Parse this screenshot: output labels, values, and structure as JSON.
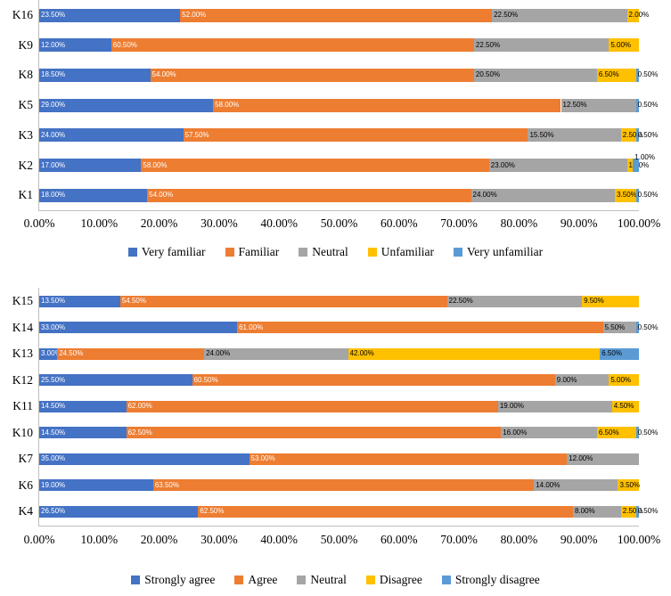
{
  "page": {
    "background": "#FFFFFF",
    "text_color": "#000000",
    "axis_line_color": "#BFBFBF"
  },
  "chart_data": [
    {
      "type": "bar",
      "orientation": "horizontal",
      "stacked": true,
      "title": "",
      "xlabel": "",
      "ylabel": "",
      "xlim": [
        0,
        100
      ],
      "gridlines": false,
      "legend_position": "bottom",
      "value_label_format": "0.00%",
      "categories": [
        "K16",
        "K9",
        "K8",
        "K5",
        "K3",
        "K2",
        "K1"
      ],
      "x_tick_labels": [
        "0.00%",
        "10.00%",
        "20.00%",
        "30.00%",
        "40.00%",
        "50.00%",
        "60.00%",
        "70.00%",
        "80.00%",
        "90.00%",
        "100.00%"
      ],
      "series": [
        {
          "name": "Very familiar",
          "color": "#4472C4",
          "label_color": "#FFFFFF",
          "values": [
            23.5,
            12.0,
            18.5,
            29.0,
            24.0,
            17.0,
            18.0
          ]
        },
        {
          "name": "Familiar",
          "color": "#ED7D31",
          "label_color": "#FFFFFF",
          "values": [
            52.0,
            60.5,
            54.0,
            58.0,
            57.5,
            58.0,
            54.0
          ]
        },
        {
          "name": "Neutral",
          "color": "#A5A5A5",
          "label_color": "#000000",
          "values": [
            22.5,
            22.5,
            20.5,
            12.5,
            15.5,
            23.0,
            24.0
          ]
        },
        {
          "name": "Unfamiliar",
          "color": "#FFC000",
          "label_color": "#000000",
          "values": [
            2.0,
            5.0,
            6.5,
            0.0,
            2.5,
            1.0,
            3.5
          ]
        },
        {
          "name": "Very unfamiliar",
          "color": "#5B9BD5",
          "label_color": "#000000",
          "values": [
            0.0,
            0.0,
            0.5,
            0.5,
            0.5,
            1.0,
            0.5
          ]
        }
      ]
    },
    {
      "type": "bar",
      "orientation": "horizontal",
      "stacked": true,
      "title": "",
      "xlabel": "",
      "ylabel": "",
      "xlim": [
        0,
        100
      ],
      "gridlines": false,
      "legend_position": "bottom",
      "value_label_format": "0.00%",
      "categories": [
        "K15",
        "K14",
        "K13",
        "K12",
        "K11",
        "K10",
        "K7",
        "K6",
        "K4"
      ],
      "x_tick_labels": [
        "0.00%",
        "10.00%",
        "20.00%",
        "30.00%",
        "40.00%",
        "50.00%",
        "60.00%",
        "70.00%",
        "80.00%",
        "90.00%",
        "100.00%"
      ],
      "series": [
        {
          "name": "Strongly agree",
          "color": "#4472C4",
          "label_color": "#FFFFFF",
          "values": [
            13.5,
            33.0,
            3.0,
            25.5,
            14.5,
            14.5,
            35.0,
            19.0,
            26.5
          ]
        },
        {
          "name": "Agree",
          "color": "#ED7D31",
          "label_color": "#FFFFFF",
          "values": [
            54.5,
            61.0,
            24.5,
            60.5,
            62.0,
            62.5,
            53.0,
            63.5,
            62.5
          ]
        },
        {
          "name": "Neutral",
          "color": "#A5A5A5",
          "label_color": "#000000",
          "values": [
            22.5,
            5.5,
            24.0,
            9.0,
            19.0,
            16.0,
            12.0,
            14.0,
            8.0
          ]
        },
        {
          "name": "Disagree",
          "color": "#FFC000",
          "label_color": "#000000",
          "values": [
            9.5,
            0.0,
            42.0,
            5.0,
            4.5,
            6.5,
            0.0,
            3.5,
            2.5
          ]
        },
        {
          "name": "Strongly disagree",
          "color": "#5B9BD5",
          "label_color": "#000000",
          "values": [
            0.0,
            0.5,
            6.5,
            0.0,
            0.0,
            0.5,
            0.0,
            0.0,
            0.5
          ]
        }
      ]
    }
  ]
}
